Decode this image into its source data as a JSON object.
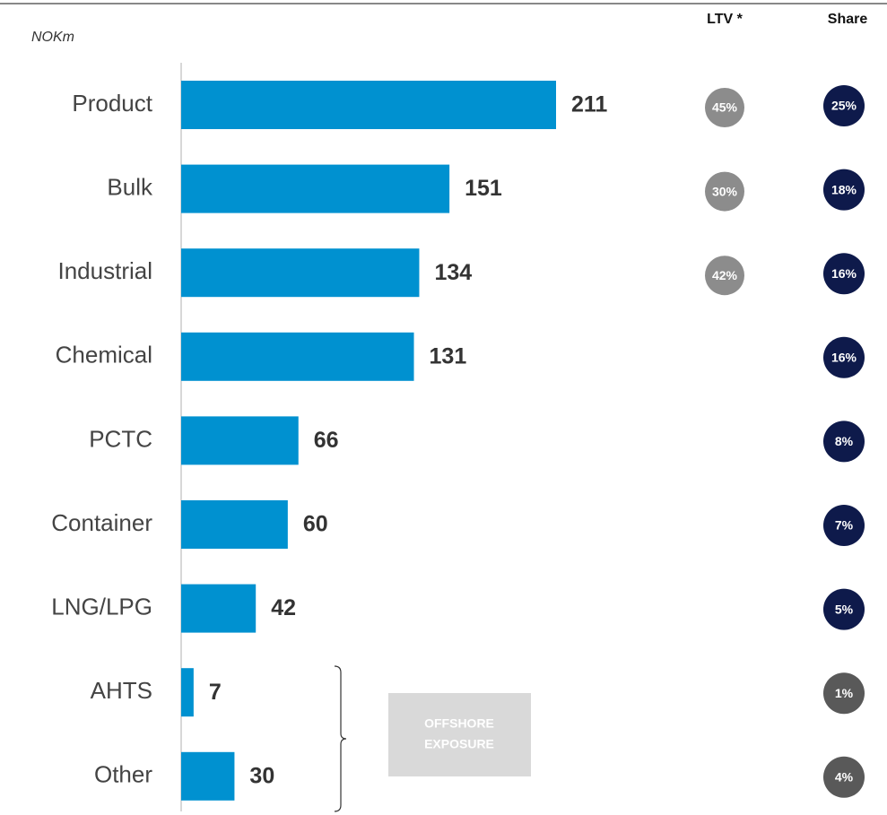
{
  "chart_data": {
    "type": "bar",
    "subtitle": "NOKm",
    "categories": [
      "Product",
      "Bulk",
      "Industrial",
      "Chemical",
      "PCTC",
      "Container",
      "LNG/LPG",
      "AHTS",
      "Other"
    ],
    "values": [
      211,
      151,
      134,
      131,
      66,
      60,
      42,
      7,
      30
    ],
    "color": "#0091d0",
    "ltv": {
      "title": "LTV *",
      "values": [
        45,
        30,
        42,
        null,
        null,
        null,
        null,
        null,
        null
      ],
      "value_labels": [
        "45%",
        "30%",
        "42%",
        null,
        null,
        null,
        null,
        null,
        null
      ],
      "color": "#8c8c8c"
    },
    "share": {
      "title": "Share",
      "values": [
        25,
        18,
        16,
        16,
        8,
        7,
        5,
        1,
        4
      ],
      "value_labels": [
        "25%",
        "18%",
        "16%",
        "16%",
        "8%",
        "7%",
        "5%",
        "1%",
        "4%"
      ],
      "colors": [
        "#0e1a4b",
        "#0e1a4b",
        "#0e1a4b",
        "#0e1a4b",
        "#0e1a4b",
        "#0e1a4b",
        "#0e1a4b",
        "#595959",
        "#595959"
      ]
    },
    "annotation": [
      "OFFSHORE",
      "EXPOSURE"
    ]
  }
}
